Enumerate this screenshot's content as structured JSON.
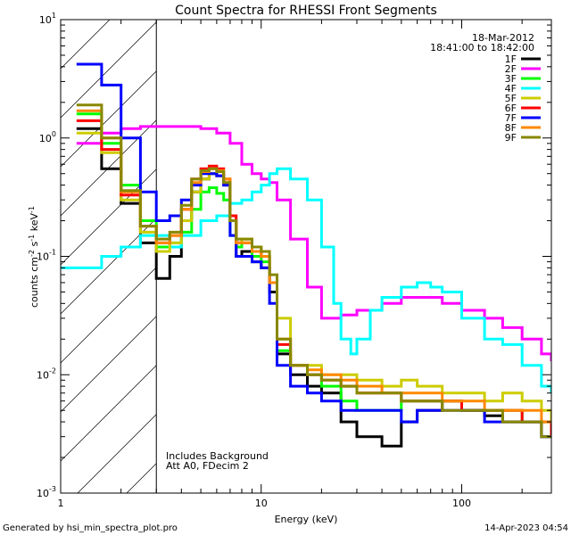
{
  "chart_data": {
    "type": "line",
    "title": "Count Spectra for RHESSI Front Segments",
    "xlabel": "Energy (keV)",
    "ylabel": "counts cm-2 s-1 keV-1",
    "xscale": "log",
    "yscale": "log",
    "xlim": [
      1,
      280
    ],
    "ylim": [
      0.001,
      10
    ],
    "x_ticks": [
      {
        "value": 1,
        "label": "1"
      },
      {
        "value": 10,
        "label": "10"
      },
      {
        "value": 100,
        "label": "100"
      }
    ],
    "y_ticks": [
      {
        "value": 0.001,
        "base": "10",
        "exp": "-3"
      },
      {
        "value": 0.01,
        "base": "10",
        "exp": "-2"
      },
      {
        "value": 0.1,
        "base": "10",
        "exp": "-1"
      },
      {
        "value": 1,
        "base": "10",
        "exp": "0"
      },
      {
        "value": 10,
        "base": "10",
        "exp": "1"
      }
    ],
    "hatched_region_max_energy": 3,
    "annotation": {
      "date": "18-Mar-2012",
      "time_range": "18:41:00 to 18:42:00"
    },
    "notes": [
      "Includes Background",
      "Att A0, FDecim 2"
    ],
    "series": [
      {
        "name": "1F",
        "color": "#000000",
        "x": [
          1.2,
          1.6,
          2.0,
          2.5,
          3.0,
          3.5,
          4.0,
          4.5,
          5.0,
          5.5,
          6.0,
          6.5,
          7.0,
          7.5,
          8.0,
          9.0,
          10.0,
          11.0,
          12.0,
          14.0,
          17.0,
          20.0,
          25.0,
          30.0,
          40.0,
          50.0,
          60.0,
          80.0,
          100.0,
          130.0,
          160.0,
          200.0,
          250.0,
          280.0
        ],
        "y": [
          1.2,
          0.55,
          0.28,
          0.13,
          0.065,
          0.1,
          0.2,
          0.35,
          0.45,
          0.5,
          0.48,
          0.4,
          0.2,
          0.1,
          0.11,
          0.09,
          0.08,
          0.05,
          0.015,
          0.01,
          0.008,
          0.007,
          0.004,
          0.003,
          0.0025,
          0.004,
          0.005,
          0.006,
          0.005,
          0.0045,
          0.004,
          0.004,
          0.003,
          0.003
        ]
      },
      {
        "name": "2F",
        "color": "#ff00ff",
        "x": [
          1.2,
          1.6,
          2.0,
          2.5,
          3.0,
          3.5,
          4.0,
          5.0,
          6.0,
          7.0,
          8.0,
          9.0,
          10.0,
          11.0,
          12.0,
          14.0,
          17.0,
          20.0,
          25.0,
          30.0,
          40.0,
          50.0,
          60.0,
          80.0,
          100.0,
          130.0,
          160.0,
          200.0,
          250.0,
          280.0
        ],
        "y": [
          0.9,
          1.1,
          1.2,
          1.25,
          1.25,
          1.25,
          1.25,
          1.2,
          1.1,
          0.9,
          0.6,
          0.5,
          0.45,
          0.42,
          0.3,
          0.14,
          0.055,
          0.03,
          0.032,
          0.035,
          0.04,
          0.045,
          0.045,
          0.04,
          0.035,
          0.03,
          0.025,
          0.02,
          0.015,
          0.013
        ]
      },
      {
        "name": "3F",
        "color": "#00ff00",
        "x": [
          1.2,
          1.6,
          2.0,
          2.5,
          3.0,
          3.5,
          4.0,
          4.5,
          5.0,
          5.5,
          6.0,
          6.5,
          7.0,
          7.5,
          8.0,
          9.0,
          10.0,
          11.0,
          12.0,
          14.0,
          17.0,
          20.0,
          25.0,
          30.0,
          40.0,
          50.0,
          60.0,
          80.0,
          100.0,
          130.0,
          160.0,
          200.0,
          250.0,
          280.0
        ],
        "y": [
          1.6,
          0.9,
          0.4,
          0.2,
          0.12,
          0.13,
          0.16,
          0.25,
          0.35,
          0.38,
          0.34,
          0.3,
          0.15,
          0.12,
          0.13,
          0.1,
          0.09,
          0.06,
          0.016,
          0.012,
          0.01,
          0.008,
          0.006,
          0.005,
          0.005,
          0.006,
          0.006,
          0.006,
          0.005,
          0.005,
          0.005,
          0.004,
          0.004,
          0.004
        ]
      },
      {
        "name": "4F",
        "color": "#00ffff",
        "x": [
          1.0,
          1.3,
          1.6,
          2.0,
          2.5,
          3.0,
          3.5,
          4.0,
          5.0,
          6.0,
          7.0,
          8.0,
          9.0,
          10.0,
          11.0,
          12.0,
          14.0,
          17.0,
          20.0,
          23.0,
          25.0,
          28.0,
          30.0,
          35.0,
          40.0,
          50.0,
          60.0,
          70.0,
          80.0,
          100.0,
          130.0,
          160.0,
          200.0,
          250.0,
          280.0
        ],
        "y": [
          0.08,
          0.08,
          0.1,
          0.12,
          0.15,
          0.15,
          0.12,
          0.15,
          0.2,
          0.22,
          0.28,
          0.3,
          0.35,
          0.4,
          0.5,
          0.55,
          0.45,
          0.3,
          0.12,
          0.04,
          0.02,
          0.015,
          0.02,
          0.035,
          0.045,
          0.055,
          0.06,
          0.055,
          0.05,
          0.03,
          0.02,
          0.018,
          0.012,
          0.008,
          0.007
        ]
      },
      {
        "name": "5F",
        "color": "#cccc00",
        "x": [
          1.2,
          1.6,
          2.0,
          2.5,
          3.0,
          3.5,
          4.0,
          4.5,
          5.0,
          5.5,
          6.0,
          6.5,
          7.0,
          7.5,
          8.0,
          9.0,
          10.0,
          11.0,
          12.0,
          14.0,
          17.0,
          20.0,
          25.0,
          30.0,
          40.0,
          50.0,
          60.0,
          80.0,
          100.0,
          130.0,
          160.0,
          200.0,
          250.0,
          280.0
        ],
        "y": [
          1.1,
          0.75,
          0.3,
          0.16,
          0.11,
          0.13,
          0.2,
          0.35,
          0.45,
          0.5,
          0.48,
          0.42,
          0.2,
          0.13,
          0.14,
          0.12,
          0.1,
          0.06,
          0.03,
          0.012,
          0.012,
          0.01,
          0.01,
          0.009,
          0.008,
          0.009,
          0.008,
          0.007,
          0.007,
          0.006,
          0.007,
          0.006,
          0.005,
          0.004
        ]
      },
      {
        "name": "6F",
        "color": "#ff0000",
        "x": [
          1.2,
          1.6,
          2.0,
          2.5,
          3.0,
          3.5,
          4.0,
          4.5,
          5.0,
          5.5,
          6.0,
          6.5,
          7.0,
          7.5,
          8.0,
          9.0,
          10.0,
          11.0,
          12.0,
          14.0,
          17.0,
          20.0,
          25.0,
          30.0,
          40.0,
          50.0,
          60.0,
          80.0,
          100.0,
          130.0,
          160.0,
          200.0,
          250.0,
          280.0
        ],
        "y": [
          1.4,
          0.8,
          0.33,
          0.18,
          0.13,
          0.15,
          0.25,
          0.45,
          0.55,
          0.58,
          0.55,
          0.45,
          0.22,
          0.13,
          0.13,
          0.11,
          0.1,
          0.06,
          0.018,
          0.012,
          0.01,
          0.009,
          0.008,
          0.007,
          0.007,
          0.006,
          0.006,
          0.006,
          0.005,
          0.005,
          0.005,
          0.004,
          0.004,
          0.003
        ]
      },
      {
        "name": "7F",
        "color": "#0000ff",
        "x": [
          1.2,
          1.6,
          2.0,
          2.5,
          3.0,
          3.5,
          4.0,
          4.5,
          5.0,
          5.5,
          6.0,
          6.5,
          7.0,
          7.5,
          8.0,
          9.0,
          10.0,
          11.0,
          12.0,
          14.0,
          17.0,
          20.0,
          25.0,
          30.0,
          40.0,
          50.0,
          60.0,
          80.0,
          100.0,
          130.0,
          160.0,
          200.0,
          250.0,
          280.0
        ],
        "y": [
          4.2,
          2.8,
          1.0,
          0.35,
          0.2,
          0.22,
          0.3,
          0.4,
          0.5,
          0.5,
          0.48,
          0.4,
          0.15,
          0.1,
          0.1,
          0.09,
          0.08,
          0.04,
          0.012,
          0.008,
          0.007,
          0.006,
          0.005,
          0.005,
          0.005,
          0.004,
          0.005,
          0.005,
          0.005,
          0.004,
          0.004,
          0.004,
          0.003,
          0.003
        ]
      },
      {
        "name": "8F",
        "color": "#ff8800",
        "x": [
          1.2,
          1.6,
          2.0,
          2.5,
          3.0,
          3.5,
          4.0,
          4.5,
          5.0,
          5.5,
          6.0,
          6.5,
          7.0,
          7.5,
          8.0,
          9.0,
          10.0,
          11.0,
          12.0,
          14.0,
          17.0,
          20.0,
          25.0,
          30.0,
          40.0,
          50.0,
          60.0,
          80.0,
          100.0,
          130.0,
          160.0,
          200.0,
          250.0,
          280.0
        ],
        "y": [
          1.7,
          1.0,
          0.35,
          0.18,
          0.13,
          0.15,
          0.25,
          0.42,
          0.52,
          0.55,
          0.53,
          0.45,
          0.2,
          0.13,
          0.13,
          0.11,
          0.1,
          0.06,
          0.02,
          0.012,
          0.011,
          0.01,
          0.009,
          0.008,
          0.007,
          0.007,
          0.007,
          0.006,
          0.006,
          0.005,
          0.005,
          0.005,
          0.004,
          0.004
        ]
      },
      {
        "name": "9F",
        "color": "#888800",
        "x": [
          1.2,
          1.6,
          2.0,
          2.5,
          3.0,
          3.5,
          4.0,
          4.5,
          5.0,
          5.5,
          6.0,
          6.5,
          7.0,
          7.5,
          8.0,
          9.0,
          10.0,
          11.0,
          12.0,
          14.0,
          17.0,
          20.0,
          25.0,
          30.0,
          40.0,
          50.0,
          60.0,
          80.0,
          100.0,
          130.0,
          160.0,
          200.0,
          250.0,
          280.0
        ],
        "y": [
          1.9,
          1.0,
          0.36,
          0.18,
          0.14,
          0.16,
          0.27,
          0.45,
          0.53,
          0.55,
          0.52,
          0.42,
          0.2,
          0.14,
          0.14,
          0.12,
          0.11,
          0.07,
          0.02,
          0.012,
          0.01,
          0.009,
          0.008,
          0.007,
          0.007,
          0.006,
          0.006,
          0.005,
          0.005,
          0.005,
          0.004,
          0.004,
          0.003,
          0.003
        ]
      }
    ]
  },
  "footer": {
    "generated": "Generated by hsi_min_spectra_plot.pro",
    "timestamp": "14-Apr-2023 04:54"
  }
}
